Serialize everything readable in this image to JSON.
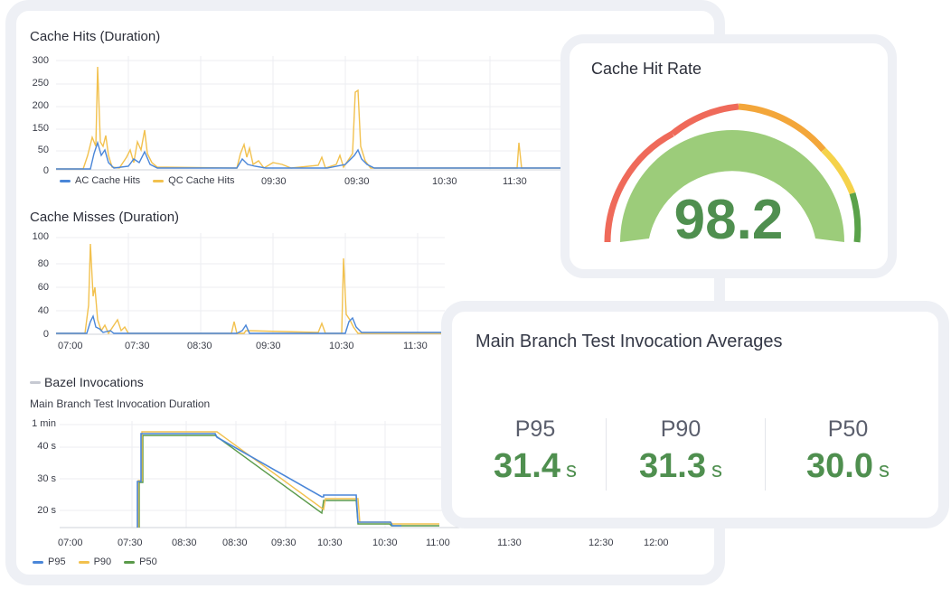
{
  "cache_hits": {
    "title": "Cache Hits (Duration)",
    "yticks": [
      "300",
      "250",
      "200",
      "150",
      "50",
      "0"
    ],
    "xticks": [
      "09:30",
      "09:30",
      "10:30",
      "11:30"
    ],
    "legend": [
      {
        "label": "AC Cache Hits",
        "color": "#4a86d8"
      },
      {
        "label": "QC Cache Hits",
        "color": "#f2c14e"
      }
    ]
  },
  "cache_misses": {
    "title": "Cache Misses (Duration)",
    "yticks": [
      "100",
      "80",
      "60",
      "40",
      "0"
    ],
    "xticks": [
      "07:00",
      "07:30",
      "08:30",
      "09:30",
      "10:30",
      "11:30"
    ]
  },
  "bazel": {
    "section_label": "Bazel Invocations",
    "chart_title": "Main Branch Test Invocation Duration",
    "yticks": [
      "1 min",
      "40 s",
      "30 s",
      "20 s"
    ],
    "xticks": [
      "07:00",
      "07:30",
      "08:30",
      "08:30",
      "09:30",
      "10:30",
      "10:30",
      "11:00",
      "11:30",
      "12:30",
      "12:00"
    ],
    "legend": [
      {
        "label": "P95",
        "color": "#4a86d8"
      },
      {
        "label": "P90",
        "color": "#f2c14e"
      },
      {
        "label": "P50",
        "color": "#5a9a4a"
      }
    ]
  },
  "gauge": {
    "title": "Cache Hit Rate",
    "value": "98.2",
    "value_number": 98.2,
    "colors": {
      "red": "#ef6a5a",
      "orange": "#f3a63a",
      "yellow": "#f5d24a",
      "green": "#5aa24a",
      "fill": "#9ccc7a"
    }
  },
  "averages": {
    "title": "Main Branch Test Invocation Averages",
    "stats": [
      {
        "label": "P95",
        "value": "31.4",
        "unit": "s"
      },
      {
        "label": "P90",
        "value": "31.3",
        "unit": "s"
      },
      {
        "label": "P50",
        "value": "30.0",
        "unit": "s"
      }
    ]
  }
}
